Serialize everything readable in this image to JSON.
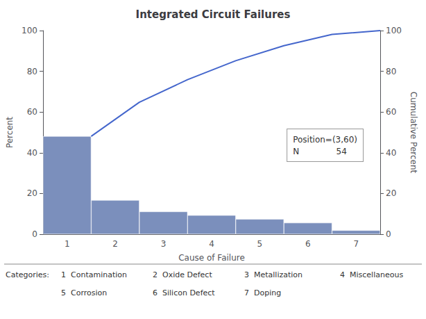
{
  "chart_data": {
    "type": "bar",
    "title": "Integrated Circuit Failures",
    "xlabel": "Cause of Failure",
    "ylabel": "Percent",
    "y2label": "Cumulative Percent",
    "categories": [
      1,
      2,
      3,
      4,
      5,
      6,
      7
    ],
    "series": [
      {
        "type": "bar",
        "color": "#7b8fbc",
        "values": [
          48.1,
          16.7,
          11.1,
          9.3,
          7.4,
          5.6,
          1.9
        ]
      },
      {
        "type": "line",
        "color": "#4466cc",
        "axis": "y2",
        "values": [
          48.1,
          64.8,
          75.9,
          85.2,
          92.6,
          98.1,
          100.0
        ]
      }
    ],
    "ylim": [
      0,
      100
    ],
    "yticks": [
      0,
      20,
      40,
      60,
      80,
      100
    ],
    "y2lim": [
      0,
      100
    ],
    "y2ticks": [
      0,
      20,
      40,
      60,
      80,
      100
    ],
    "grid": false,
    "annotations": [
      "Position=(3,60)",
      "N",
      "54"
    ],
    "category_key": {
      "title": "Categories:",
      "entries": [
        {
          "num": "1",
          "name": "Contamination"
        },
        {
          "num": "2",
          "name": "Oxide Defect"
        },
        {
          "num": "3",
          "name": "Metallization"
        },
        {
          "num": "4",
          "name": "Miscellaneous"
        },
        {
          "num": "5",
          "name": "Corrosion"
        },
        {
          "num": "6",
          "name": "Silicon Defect"
        },
        {
          "num": "7",
          "name": "Doping"
        }
      ]
    }
  }
}
